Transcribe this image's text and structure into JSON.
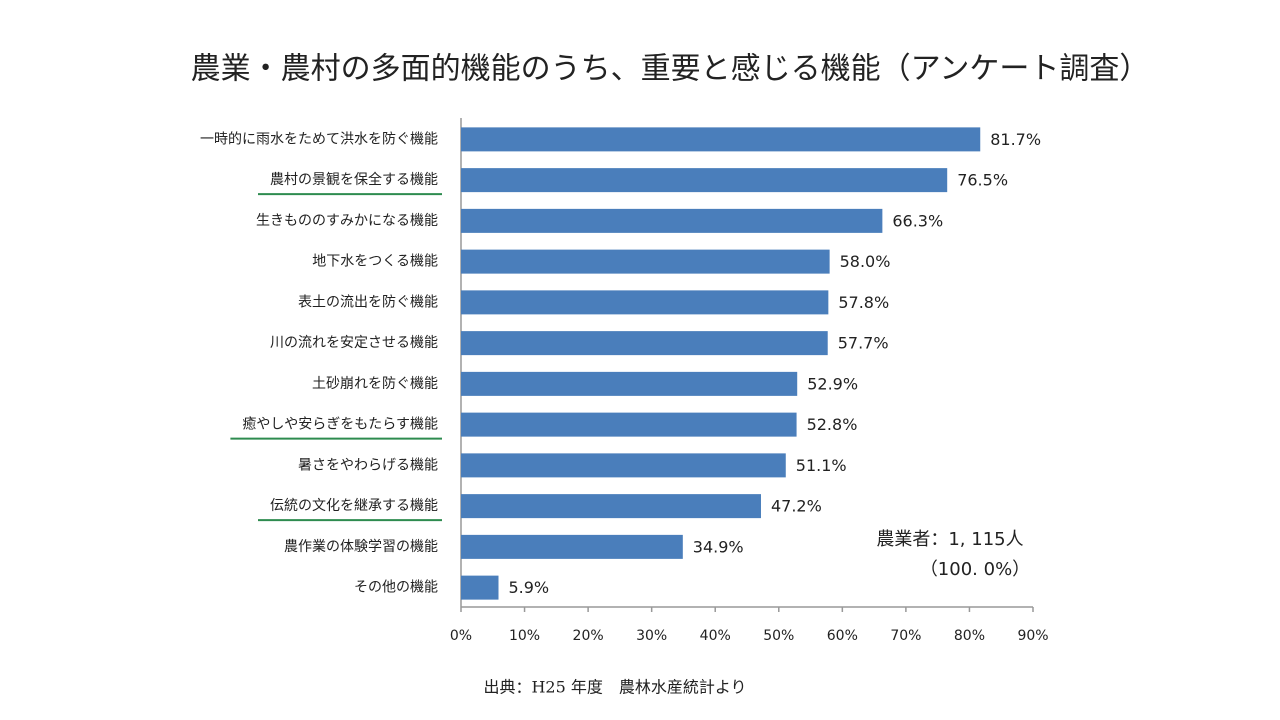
{
  "chart_data": {
    "type": "bar",
    "orientation": "horizontal",
    "title": "農業・農村の多面的機能のうち、重要と感じる機能（アンケート調査）",
    "categories": [
      "一時的に雨水をためて洪水を防ぐ機能",
      "農村の景観を保全する機能",
      "生きもののすみかになる機能",
      "地下水をつくる機能",
      "表土の流出を防ぐ機能",
      "川の流れを安定させる機能",
      "土砂崩れを防ぐ機能",
      "癒やしや安らぎをもたらす機能",
      "暑さをやわらげる機能",
      "伝統の文化を継承する機能",
      "農作業の体験学習の機能",
      "その他の機能"
    ],
    "values": [
      81.7,
      76.5,
      66.3,
      58.0,
      57.8,
      57.7,
      52.9,
      52.8,
      51.1,
      47.2,
      34.9,
      5.9
    ],
    "value_labels": [
      "81.7%",
      "76.5%",
      "66.3%",
      "58.0%",
      "57.8%",
      "57.7%",
      "52.9%",
      "52.8%",
      "51.1%",
      "47.2%",
      "34.9%",
      "5.9%"
    ],
    "underlined": [
      false,
      true,
      false,
      false,
      false,
      false,
      false,
      true,
      false,
      true,
      false,
      false
    ],
    "underline_color": "#2e8b4f",
    "color": "#4a7ebb",
    "xlim": [
      0,
      90
    ],
    "xticks": [
      {
        "value": 0,
        "label": "0%"
      },
      {
        "value": 10,
        "label": "10%"
      },
      {
        "value": 20,
        "label": "20%"
      },
      {
        "value": 30,
        "label": "30%"
      },
      {
        "value": 40,
        "label": "40%"
      },
      {
        "value": 50,
        "label": "50%"
      },
      {
        "value": 60,
        "label": "60%"
      },
      {
        "value": 70,
        "label": "70%"
      },
      {
        "value": 80,
        "label": "80%"
      },
      {
        "value": 90,
        "label": "90%"
      }
    ],
    "annotations": [
      "農業者：1, 115人",
      "（100. 0%）"
    ],
    "source": "出典：H25 年度　農林水産統計より"
  }
}
